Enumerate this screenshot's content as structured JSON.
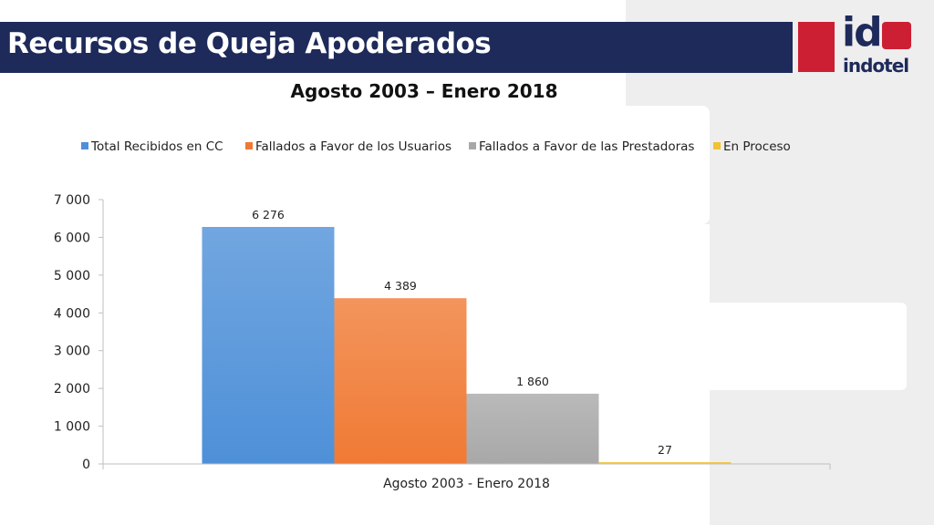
{
  "slide": {
    "title": "Recursos de Queja Apoderados",
    "logo_text": "indotel",
    "logo_mark": "id"
  },
  "chart_data": {
    "type": "bar",
    "title": "Agosto 2003 – Enero 2018",
    "categories": [
      "Agosto 2003 - Enero 2018"
    ],
    "series": [
      {
        "name": "Total Recibidos en CC",
        "values": [
          6276
        ],
        "label": "6 276",
        "color": "#4e90d8"
      },
      {
        "name": "Fallados a Favor de los Usuarios",
        "values": [
          4389
        ],
        "label": "4 389",
        "color": "#f07a34"
      },
      {
        "name": "Fallados a Favor de las Prestadoras",
        "values": [
          1860
        ],
        "label": "1 860",
        "color": "#a8a8a8"
      },
      {
        "name": "En Proceso",
        "values": [
          27
        ],
        "label": "27",
        "color": "#f2c230"
      }
    ],
    "ylim": [
      0,
      7000
    ],
    "yticks": [
      0,
      1000,
      2000,
      3000,
      4000,
      5000,
      6000,
      7000
    ],
    "ytick_labels": [
      "0",
      "1 000",
      "2 000",
      "3 000",
      "4 000",
      "5 000",
      "6 000",
      "7 000"
    ],
    "legend_position": "top",
    "grid": false
  }
}
